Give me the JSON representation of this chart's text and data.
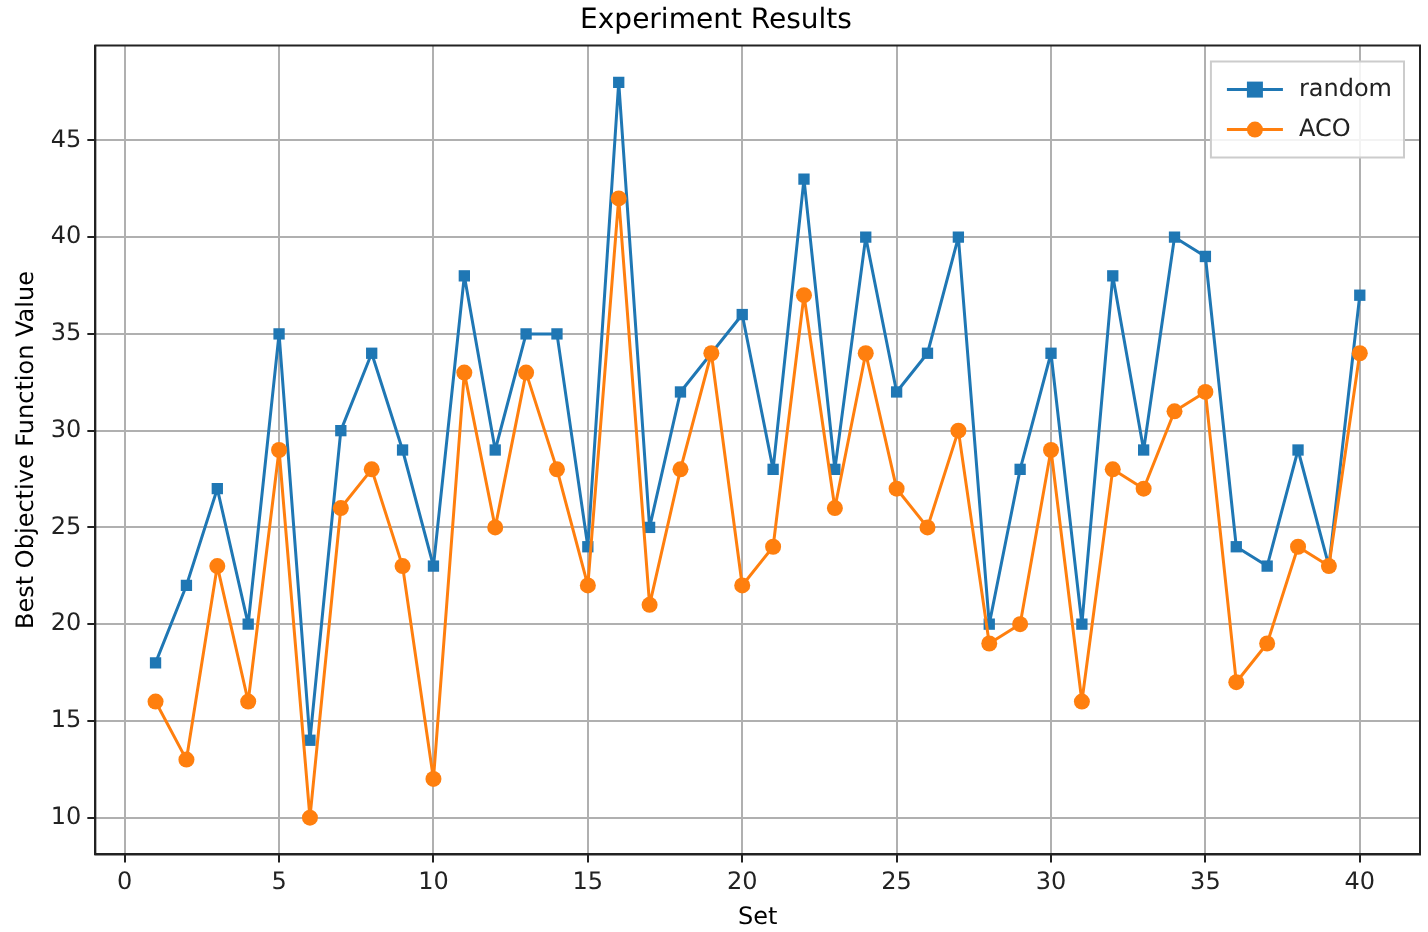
{
  "chart_data": {
    "type": "line",
    "title": "Experiment Results",
    "xlabel": "Set",
    "ylabel": "Best Objective Function Value",
    "x": [
      1,
      2,
      3,
      4,
      5,
      6,
      7,
      8,
      9,
      10,
      11,
      12,
      13,
      14,
      15,
      16,
      17,
      18,
      19,
      20,
      21,
      22,
      23,
      24,
      25,
      26,
      27,
      28,
      29,
      30,
      31,
      32,
      33,
      34,
      35,
      36,
      37,
      38,
      39,
      40
    ],
    "series": [
      {
        "name": "random",
        "color": "#1f77b4",
        "marker": "square",
        "values": [
          18,
          22,
          27,
          20,
          35,
          14,
          30,
          34,
          29,
          23,
          38,
          29,
          35,
          35,
          24,
          48,
          25,
          32,
          34,
          36,
          28,
          43,
          28,
          40,
          32,
          34,
          40,
          20,
          28,
          34,
          20,
          38,
          29,
          40,
          39,
          24,
          23,
          29,
          23,
          37
        ]
      },
      {
        "name": "ACO",
        "color": "#ff7f0e",
        "marker": "circle",
        "values": [
          16,
          13,
          23,
          16,
          29,
          10,
          26,
          28,
          23,
          12,
          33,
          25,
          33,
          28,
          22,
          42,
          21,
          28,
          34,
          22,
          24,
          37,
          26,
          34,
          27,
          25,
          30,
          19,
          20,
          29,
          16,
          28,
          27,
          31,
          32,
          17,
          19,
          24,
          23,
          34
        ]
      }
    ],
    "xlim": [
      -0.95,
      41.95
    ],
    "ylim": [
      8.1,
      49.9
    ],
    "xticks": [
      0,
      5,
      10,
      15,
      20,
      25,
      30,
      35,
      40
    ],
    "yticks": [
      10,
      15,
      20,
      25,
      30,
      35,
      40,
      45
    ],
    "grid": true,
    "legend": "top right",
    "line_style": "solid"
  }
}
